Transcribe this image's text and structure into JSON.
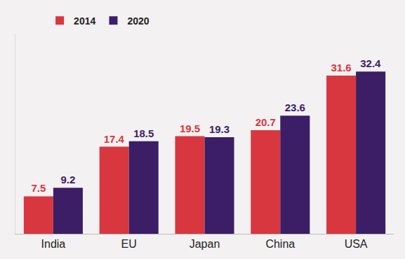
{
  "chart_data": {
    "type": "bar",
    "categories": [
      "India",
      "EU",
      "Japan",
      "China",
      "USA"
    ],
    "series": [
      {
        "name": "2014",
        "color": "#d8373f",
        "values": [
          7.5,
          17.4,
          19.5,
          20.7,
          31.6
        ]
      },
      {
        "name": "2020",
        "color": "#3b1e66",
        "values": [
          9.2,
          18.5,
          19.3,
          23.6,
          32.4
        ]
      }
    ],
    "ylim": [
      0,
      40
    ],
    "yticks": [],
    "grid": false,
    "legend": "top-left",
    "data_labels": true,
    "tick_labels": "x"
  }
}
